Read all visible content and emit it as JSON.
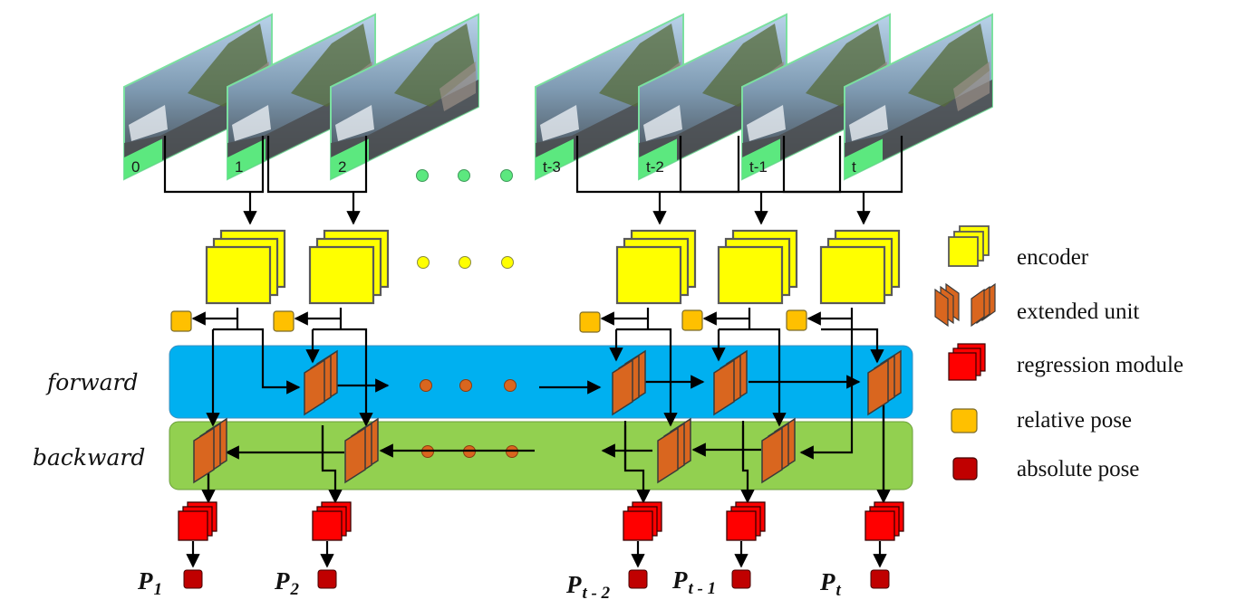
{
  "frames": [
    "0",
    "1",
    "2",
    "t-3",
    "t-2",
    "t-1",
    "t"
  ],
  "rows": {
    "forward": "forward",
    "backward": "backward"
  },
  "outputs": [
    {
      "main": "P",
      "sub": "1"
    },
    {
      "main": "P",
      "sub": "2"
    },
    {
      "main": "P",
      "sub": "t - 2"
    },
    {
      "main": "P",
      "sub": "t - 1"
    },
    {
      "main": "P",
      "sub": "t"
    }
  ],
  "legend": {
    "encoder": "encoder",
    "extended_unit": "extended unit",
    "regression_module": "regression module",
    "relative_pose": "relative pose",
    "absolute_pose": "absolute pose"
  },
  "colors": {
    "frame_border": "#7be0a0",
    "frame_tag": "#5ce87f",
    "encoder": "#ffff00",
    "encoder_stroke": "#595959",
    "extended_unit": "#d9661f",
    "regression": "#ff0000",
    "relative_pose": "#ffc000",
    "absolute_pose": "#c00000",
    "forward_band": "#00b0f0",
    "backward_band": "#92d050",
    "dots_frames": "#5ce87f",
    "dots_encoder": "#ffff00",
    "dots_units": "#d9661f"
  }
}
